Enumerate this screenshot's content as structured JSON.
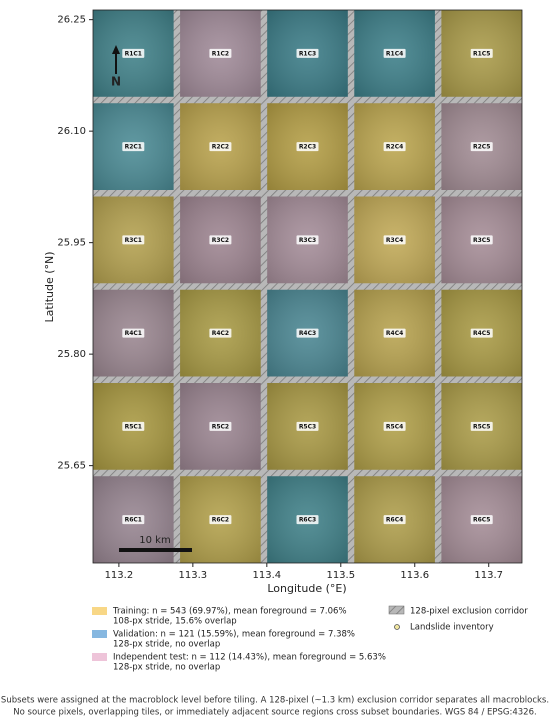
{
  "chart_data": {
    "type": "map",
    "x_label": "Longitude (°E)",
    "y_label": "Latitude (°N)",
    "xlim": [
      113.165,
      113.745
    ],
    "ylim": [
      25.519,
      26.263
    ],
    "xticks": [
      113.2,
      113.3,
      113.4,
      113.5,
      113.6,
      113.7
    ],
    "yticks": [
      {
        "value": 25.65,
        "label": "25.65"
      },
      {
        "value": 25.8,
        "label": "25.80"
      },
      {
        "value": 25.95,
        "label": "25.95"
      },
      {
        "value": 26.1,
        "label": "26.10"
      },
      {
        "value": 26.25,
        "label": "26.25"
      }
    ],
    "north_label": "N",
    "scale_label": "10 km",
    "tiles": [
      [
        {
          "label": "R1C1",
          "color": "#3f8088"
        },
        {
          "label": "R1C2",
          "color": "#a08a98"
        },
        {
          "label": "R1C3",
          "color": "#3a7b86"
        },
        {
          "label": "R1C4",
          "color": "#3c7e88"
        },
        {
          "label": "R1C5",
          "color": "#a99a48"
        }
      ],
      [
        {
          "label": "R2C1",
          "color": "#4a8a94"
        },
        {
          "label": "R2C2",
          "color": "#b9a24c"
        },
        {
          "label": "R2C3",
          "color": "#b39d44"
        },
        {
          "label": "R2C4",
          "color": "#bba54e"
        },
        {
          "label": "R2C5",
          "color": "#a28c94"
        }
      ],
      [
        {
          "label": "R3C1",
          "color": "#b3a04e"
        },
        {
          "label": "R3C2",
          "color": "#9d8490"
        },
        {
          "label": "R3C3",
          "color": "#a48c98"
        },
        {
          "label": "R3C4",
          "color": "#c1a956"
        },
        {
          "label": "R3C5",
          "color": "#a58c96"
        }
      ],
      [
        {
          "label": "R4C1",
          "color": "#9a8690"
        },
        {
          "label": "R4C2",
          "color": "#a89a44"
        },
        {
          "label": "R4C3",
          "color": "#4a8692"
        },
        {
          "label": "R4C4",
          "color": "#b7a24e"
        },
        {
          "label": "R4C5",
          "color": "#a99a44"
        }
      ],
      [
        {
          "label": "R5C1",
          "color": "#a89840"
        },
        {
          "label": "R5C2",
          "color": "#9a8490"
        },
        {
          "label": "R5C3",
          "color": "#a99944"
        },
        {
          "label": "R5C4",
          "color": "#b09f48"
        },
        {
          "label": "R5C5",
          "color": "#ab9c48"
        }
      ],
      [
        {
          "label": "R6C1",
          "color": "#968490"
        },
        {
          "label": "R6C2",
          "color": "#b2a04a"
        },
        {
          "label": "R6C3",
          "color": "#3f8088"
        },
        {
          "label": "R6C4",
          "color": "#ae9d4a"
        },
        {
          "label": "R6C5",
          "color": "#a48c96"
        }
      ]
    ],
    "legend": [
      {
        "color": "#f6c95e",
        "lines": [
          "Training: n = 543 (69.97%), mean foreground = 7.06%",
          "108-px stride, 15.6% overlap"
        ]
      },
      {
        "color": "#5e9fd6",
        "lines": [
          "Validation: n = 121 (15.59%), mean foreground = 7.38%",
          "128-px stride, no overlap"
        ]
      },
      {
        "color": "#e8b0cc",
        "lines": [
          "Independent test: n = 112 (14.43%), mean foreground = 5.63%",
          "128-px stride, no overlap"
        ]
      }
    ],
    "corridor_label": "128-pixel exclusion corridor",
    "inventory_label": "Landslide inventory",
    "note": [
      "Subsets were assigned at the macroblock level before tiling. A 128-pixel (~1.3 km) exclusion corridor separates all macroblocks.",
      "No source pixels, overlapping tiles, or immediately adjacent source regions cross subset boundaries. WGS 84 / EPSG:4326."
    ]
  }
}
